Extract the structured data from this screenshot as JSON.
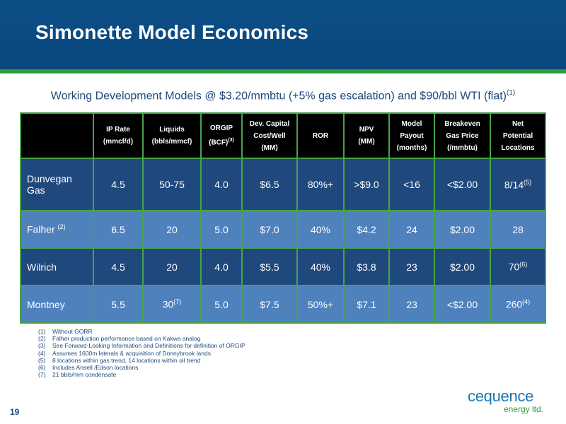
{
  "slide": {
    "title": "Simonette Model Economics",
    "subtitle": "Working Development Models @ $3.20/mmbtu (+5% gas escalation) and $90/bbl WTI (flat)",
    "subtitle_sup": "(1)",
    "page_number": "19"
  },
  "table": {
    "headers": [
      {
        "text": ""
      },
      {
        "text": "IP Rate\n(mmcf/d)",
        "sup": ""
      },
      {
        "text": "Liquids\n(bbls/mmcf)",
        "sup": ""
      },
      {
        "text": "ORGIP\n(BCF)",
        "sup": "(3)"
      },
      {
        "text": "Dev. Capital\nCost/Well\n(MM)",
        "sup": ""
      },
      {
        "text": "ROR",
        "sup": ""
      },
      {
        "text": "NPV\n(MM)",
        "sup": ""
      },
      {
        "text": "Model\nPayout\n(months)",
        "sup": ""
      },
      {
        "text": "Breakeven\nGas Price\n(/mmbtu)",
        "sup": ""
      },
      {
        "text": "Net\nPotential\nLocations",
        "sup": ""
      }
    ],
    "rows": [
      {
        "cells": [
          {
            "text": "Dunvegan\nGas",
            "sup": ""
          },
          {
            "text": "4.5",
            "sup": ""
          },
          {
            "text": "50-75",
            "sup": ""
          },
          {
            "text": "4.0",
            "sup": ""
          },
          {
            "text": "$6.5",
            "sup": ""
          },
          {
            "text": "80%+",
            "sup": ""
          },
          {
            "text": ">$9.0",
            "sup": ""
          },
          {
            "text": "<16",
            "sup": ""
          },
          {
            "text": "<$2.00",
            "sup": ""
          },
          {
            "text": "8/14",
            "sup": "(5)"
          }
        ]
      },
      {
        "cells": [
          {
            "text": "Falher ",
            "sup": "(2)"
          },
          {
            "text": "6.5",
            "sup": ""
          },
          {
            "text": "20",
            "sup": ""
          },
          {
            "text": "5.0",
            "sup": ""
          },
          {
            "text": "$7.0",
            "sup": ""
          },
          {
            "text": "40%",
            "sup": ""
          },
          {
            "text": "$4.2",
            "sup": ""
          },
          {
            "text": "24",
            "sup": ""
          },
          {
            "text": "$2.00",
            "sup": ""
          },
          {
            "text": "28",
            "sup": ""
          }
        ]
      },
      {
        "cells": [
          {
            "text": "Wilrich",
            "sup": ""
          },
          {
            "text": "4.5",
            "sup": ""
          },
          {
            "text": "20",
            "sup": ""
          },
          {
            "text": "4.0",
            "sup": ""
          },
          {
            "text": "$5.5",
            "sup": ""
          },
          {
            "text": "40%",
            "sup": ""
          },
          {
            "text": "$3.8",
            "sup": ""
          },
          {
            "text": "23",
            "sup": ""
          },
          {
            "text": "$2.00",
            "sup": ""
          },
          {
            "text": "70",
            "sup": "(6)"
          }
        ]
      },
      {
        "cells": [
          {
            "text": "Montney",
            "sup": ""
          },
          {
            "text": "5.5",
            "sup": ""
          },
          {
            "text": "30",
            "sup": "(7)"
          },
          {
            "text": "5.0",
            "sup": ""
          },
          {
            "text": "$7.5",
            "sup": ""
          },
          {
            "text": "50%+",
            "sup": ""
          },
          {
            "text": "$7.1",
            "sup": ""
          },
          {
            "text": "23",
            "sup": ""
          },
          {
            "text": "<$2.00",
            "sup": ""
          },
          {
            "text": "260",
            "sup": "(4)"
          }
        ]
      }
    ]
  },
  "footnotes": [
    {
      "num": "(1)",
      "text": "Without GORR"
    },
    {
      "num": "(2)",
      "text": "Falher production performance based on Kakwa analog"
    },
    {
      "num": "(3)",
      "text": "See Forward-Looking Information and Definitions for definition of ORGIP"
    },
    {
      "num": "(4)",
      "text": "Assumes 1600m laterals & acquisition of Donnybrook lands"
    },
    {
      "num": "(5)",
      "text": "8 locations within gas trend, 14 locations within oil trend"
    },
    {
      "num": "(6)",
      "text": "Includes Ansell /Edson locations"
    },
    {
      "num": "(7)",
      "text": "21 bbls/mm condensate"
    }
  ],
  "logo": {
    "main": "cequence",
    "sub": "energy ltd."
  },
  "colors": {
    "header_bg": "#0c4f87",
    "accent_green": "#2f9a3f",
    "row_dark": "#1f497d",
    "row_light": "#4f81bd",
    "table_header": "#000000"
  }
}
